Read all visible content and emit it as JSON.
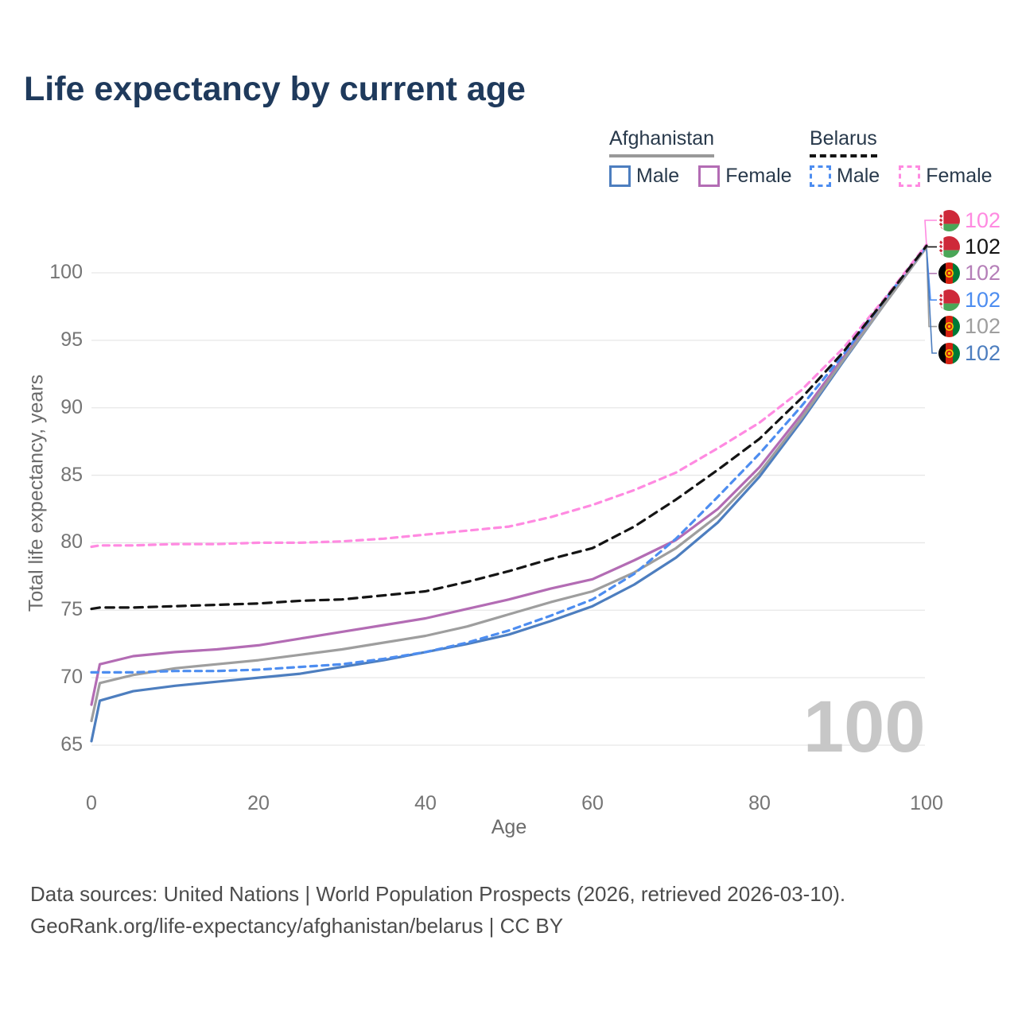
{
  "title": "Life expectancy by current age",
  "watermark_age": "100",
  "axes": {
    "x_label": "Age",
    "y_label": "Total life expectancy, years"
  },
  "legend": {
    "groups": [
      {
        "name": "Afghanistan",
        "underline_color": "#999999",
        "underline_style": "solid",
        "items": [
          {
            "label": "Male",
            "color": "#4d7ebf",
            "dashed": false
          },
          {
            "label": "Female",
            "color": "#b36cb4",
            "dashed": false
          }
        ]
      },
      {
        "name": "Belarus",
        "underline_color": "#141414",
        "underline_style": "dashed",
        "items": [
          {
            "label": "Male",
            "color": "#4d8df0",
            "dashed": true
          },
          {
            "label": "Female",
            "color": "#ff8ae1",
            "dashed": true
          }
        ]
      }
    ]
  },
  "chart_data": {
    "type": "line",
    "title": "Life expectancy by current age",
    "xlabel": "Age",
    "ylabel": "Total life expectancy, years",
    "xlim": [
      0,
      100
    ],
    "ylim": [
      63.5,
      103
    ],
    "x_ticks": [
      0,
      20,
      40,
      60,
      80,
      100
    ],
    "y_ticks": [
      65,
      70,
      75,
      80,
      85,
      90,
      95,
      100
    ],
    "grid": true,
    "legend_position": "top-right",
    "x": [
      0,
      1,
      5,
      10,
      15,
      20,
      25,
      30,
      35,
      40,
      45,
      50,
      55,
      60,
      65,
      70,
      75,
      80,
      85,
      90,
      95,
      100
    ],
    "series": [
      {
        "name": "Afghanistan Male",
        "country": "Afghanistan",
        "sex": "Male",
        "color": "#4d7ebf",
        "dashed": false,
        "dash": "",
        "end_value": 102,
        "values": [
          65.3,
          68.3,
          69.0,
          69.4,
          69.7,
          70.0,
          70.3,
          70.8,
          71.3,
          71.9,
          72.5,
          73.2,
          74.2,
          75.3,
          76.9,
          78.9,
          81.5,
          84.9,
          89.0,
          93.4,
          97.7,
          101.9
        ]
      },
      {
        "name": "Afghanistan Female",
        "country": "Afghanistan",
        "sex": "Female",
        "color": "#b36cb4",
        "dashed": false,
        "dash": "",
        "end_value": 102,
        "values": [
          68.0,
          71.0,
          71.6,
          71.9,
          72.1,
          72.4,
          72.9,
          73.4,
          73.9,
          74.4,
          75.1,
          75.8,
          76.6,
          77.3,
          78.7,
          80.2,
          82.5,
          85.6,
          89.5,
          93.7,
          97.8,
          101.9
        ]
      },
      {
        "name": "Afghanistan Total",
        "country": "Afghanistan",
        "sex": "Total",
        "color": "#9e9e9e",
        "dashed": false,
        "dash": "",
        "end_value": 102,
        "values": [
          66.8,
          69.6,
          70.2,
          70.7,
          71.0,
          71.3,
          71.7,
          72.1,
          72.6,
          73.1,
          73.8,
          74.7,
          75.6,
          76.4,
          77.8,
          79.6,
          82.0,
          85.2,
          89.2,
          93.5,
          97.7,
          101.9
        ]
      },
      {
        "name": "Belarus Male",
        "country": "Belarus",
        "sex": "Male",
        "color": "#4d8df0",
        "dashed": true,
        "dash": "8 6.5",
        "end_value": 102,
        "values": [
          70.4,
          70.4,
          70.4,
          70.5,
          70.5,
          70.6,
          70.8,
          71.0,
          71.4,
          71.9,
          72.6,
          73.5,
          74.6,
          75.8,
          77.7,
          80.3,
          83.4,
          86.6,
          90.1,
          93.9,
          98.0,
          102.0
        ]
      },
      {
        "name": "Belarus Female",
        "country": "Belarus",
        "sex": "Female",
        "color": "#ff8ae1",
        "dashed": true,
        "dash": "8 6.5",
        "end_value": 102,
        "values": [
          79.7,
          79.8,
          79.8,
          79.9,
          79.9,
          80.0,
          80.0,
          80.1,
          80.3,
          80.6,
          80.9,
          81.2,
          81.9,
          82.8,
          83.9,
          85.2,
          87.0,
          88.9,
          91.3,
          94.4,
          98.1,
          102.1
        ]
      },
      {
        "name": "Belarus Total",
        "country": "Belarus",
        "sex": "Total",
        "color": "#141414",
        "dashed": true,
        "dash": "10.5 7.5",
        "end_value": 102,
        "values": [
          75.1,
          75.2,
          75.2,
          75.3,
          75.4,
          75.5,
          75.7,
          75.8,
          76.1,
          76.4,
          77.1,
          77.9,
          78.8,
          79.6,
          81.2,
          83.2,
          85.4,
          87.7,
          90.7,
          94.1,
          98.0,
          102.0
        ]
      }
    ]
  },
  "end_labels": [
    {
      "value": "102",
      "series": "Belarus Female",
      "flag": "belarus",
      "color": "#ff8ae1"
    },
    {
      "value": "102",
      "series": "Belarus Total",
      "flag": "belarus",
      "color": "#141414"
    },
    {
      "value": "102",
      "series": "Afghanistan Female",
      "flag": "afghanistan",
      "color": "#b57fb8"
    },
    {
      "value": "102",
      "series": "Belarus Male",
      "flag": "belarus",
      "color": "#4d8df0"
    },
    {
      "value": "102",
      "series": "Afghanistan Total",
      "flag": "afghanistan",
      "color": "#9e9e9e"
    },
    {
      "value": "102",
      "series": "Afghanistan Male",
      "flag": "afghanistan",
      "color": "#4d7ebf"
    }
  ],
  "footer": {
    "line1": "Data sources: United Nations | World Population Prospects (2026, retrieved 2026-03-10).",
    "line2": "GeoRank.org/life-expectancy/afghanistan/belarus | CC BY"
  }
}
